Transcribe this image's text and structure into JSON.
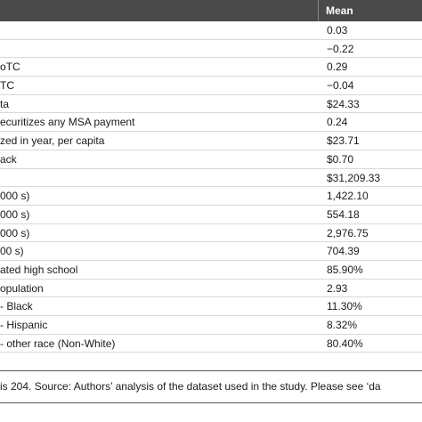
{
  "table": {
    "header": {
      "mean_label": "Mean"
    },
    "rows": [
      {
        "variable": "",
        "mean": "0.03"
      },
      {
        "variable": "",
        "mean": "−0.22"
      },
      {
        "variable": "oTC",
        "mean": "0.29"
      },
      {
        "variable": "TC",
        "mean": "−0.04"
      },
      {
        "variable": "ta",
        "mean": "$24.33"
      },
      {
        "variable": "ecuritizes any MSA payment",
        "mean": "0.24"
      },
      {
        "variable": "zed in year, per capita",
        "mean": "$23.71"
      },
      {
        "variable": "ack",
        "mean": "$0.70"
      },
      {
        "variable": "",
        "mean": "$31,209.33"
      },
      {
        "variable": "000 s)",
        "mean": "1,422.10"
      },
      {
        "variable": "000 s)",
        "mean": "554.18"
      },
      {
        "variable": "000 s)",
        "mean": "2,976.75"
      },
      {
        "variable": "00 s)",
        "mean": "704.39"
      },
      {
        "variable": "ated high school",
        "mean": "85.90%"
      },
      {
        "variable": "opulation",
        "mean": "2.93"
      },
      {
        "variable": "- Black",
        "mean": "11.30%"
      },
      {
        "variable": "- Hispanic",
        "mean": "8.32%"
      },
      {
        "variable": "- other race (Non-White)",
        "mean": "80.40%"
      }
    ]
  },
  "note": "is 204. Source: Authors’ analysis of the dataset used in the study. Please see ‘da"
}
